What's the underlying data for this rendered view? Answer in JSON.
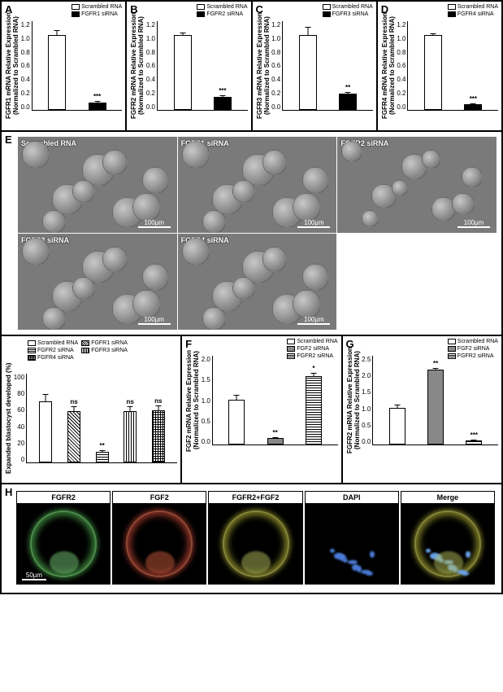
{
  "panels_top": [
    {
      "id": "A",
      "ylabel": "FGFR1 mRNA Relative Expression\n(Normalized to Scrambled RNA)",
      "legend": [
        "Scrambled RNA",
        "FGFR1 siRNA"
      ],
      "bars": [
        {
          "fill": "white",
          "val": 1.0,
          "err": 0.08
        },
        {
          "fill": "black",
          "val": 0.1,
          "err": 0.03,
          "sig": "***"
        }
      ],
      "ymax": 1.2,
      "ytick": 0.2
    },
    {
      "id": "B",
      "ylabel": "FGFR2 mRNA Relative Expression\n(Normalized to Scrambled RNA)",
      "legend": [
        "Scrambled RNA",
        "FGFR2 siRNA"
      ],
      "bars": [
        {
          "fill": "white",
          "val": 1.0,
          "err": 0.05
        },
        {
          "fill": "black",
          "val": 0.18,
          "err": 0.03,
          "sig": "***"
        }
      ],
      "ymax": 1.2,
      "ytick": 0.2
    },
    {
      "id": "C",
      "ylabel": "FGFR3 mRNA Relative Expression\n(Normalized to Scrambled RNA)",
      "legend": [
        "Scrambled RNA",
        "FGFR3 siRNA"
      ],
      "bars": [
        {
          "fill": "white",
          "val": 1.0,
          "err": 0.12
        },
        {
          "fill": "black",
          "val": 0.22,
          "err": 0.03,
          "sig": "**"
        }
      ],
      "ymax": 1.2,
      "ytick": 0.2
    },
    {
      "id": "D",
      "ylabel": "FGFR4 mRNA Relative Expression\n(Normalized to Scrambled RNA)",
      "legend": [
        "Scrambled RNA",
        "FGFR4 siRNA"
      ],
      "bars": [
        {
          "fill": "white",
          "val": 1.0,
          "err": 0.04
        },
        {
          "fill": "black",
          "val": 0.08,
          "err": 0.02,
          "sig": "***"
        }
      ],
      "ymax": 1.2,
      "ytick": 0.2
    }
  ],
  "panel_E": {
    "id": "E",
    "images": [
      {
        "tag": "Scrambled RNA",
        "scale": "100µm"
      },
      {
        "tag": "FGFR1 siRNA",
        "scale": "100µm"
      },
      {
        "tag": "FGFR2 siRNA",
        "scale": "100µm"
      },
      {
        "tag": "FGFR3 siRNA",
        "scale": "100µm"
      },
      {
        "tag": "FGFR4 siRNA",
        "scale": "100µm"
      }
    ]
  },
  "panel_E_bar": {
    "ylabel": "Expanded blastocyst\ndeveloped (%)",
    "legend": [
      {
        "label": "Scrambled RNA",
        "fill": "white"
      },
      {
        "label": "FGFR1 siRNA",
        "fill": "diag"
      },
      {
        "label": "FGFR2 siRNA",
        "fill": "hstripe"
      },
      {
        "label": "FGFR3 siRNA",
        "fill": "vstripe"
      },
      {
        "label": "FGFR4 siRNA",
        "fill": "grid"
      }
    ],
    "bars": [
      {
        "fill": "white",
        "val": 68,
        "err": 9
      },
      {
        "fill": "diag",
        "val": 57,
        "err": 7,
        "sig": "ns"
      },
      {
        "fill": "hstripe",
        "val": 12,
        "err": 3,
        "sig": "**"
      },
      {
        "fill": "vstripe",
        "val": 57,
        "err": 7,
        "sig": "ns"
      },
      {
        "fill": "grid",
        "val": 58,
        "err": 7,
        "sig": "ns"
      }
    ],
    "ymax": 100,
    "ytick": 20
  },
  "panel_F": {
    "id": "F",
    "ylabel": "FGF2 mRNA Relative Expression\n(Normalized to Scrambled RNA)",
    "legend": [
      {
        "label": "Scrambled RNA",
        "fill": "white"
      },
      {
        "label": "FGF2 siRNA",
        "fill": "grey"
      },
      {
        "label": "FGFR2 siRNA",
        "fill": "hstripe"
      }
    ],
    "bars": [
      {
        "fill": "white",
        "val": 1.0,
        "err": 0.12
      },
      {
        "fill": "grey",
        "val": 0.15,
        "err": 0.03,
        "sig": "**"
      },
      {
        "fill": "hstripe",
        "val": 1.52,
        "err": 0.1,
        "sig": "*"
      }
    ],
    "ymax": 2.0,
    "ytick": 0.5
  },
  "panel_G": {
    "id": "G",
    "ylabel": "FGFR2 mRNA Relative Expression\n(Normalized to Scrambled RNA)",
    "legend": [
      {
        "label": "Scrambled RNA",
        "fill": "white"
      },
      {
        "label": "FGF2 siRNA",
        "fill": "grey"
      },
      {
        "label": "FGFR2 siRNA",
        "fill": "hstripe"
      }
    ],
    "bars": [
      {
        "fill": "white",
        "val": 1.02,
        "err": 0.12
      },
      {
        "fill": "grey",
        "val": 2.08,
        "err": 0.08,
        "sig": "**"
      },
      {
        "fill": "hstripe",
        "val": 0.12,
        "err": 0.03,
        "sig": "***"
      }
    ],
    "ymax": 2.5,
    "ytick": 0.5
  },
  "panel_H": {
    "id": "H",
    "cols": [
      "FGFR2",
      "FGF2",
      "FGFR2+FGF2",
      "DAPI",
      "Merge"
    ],
    "scale": "50µm"
  }
}
